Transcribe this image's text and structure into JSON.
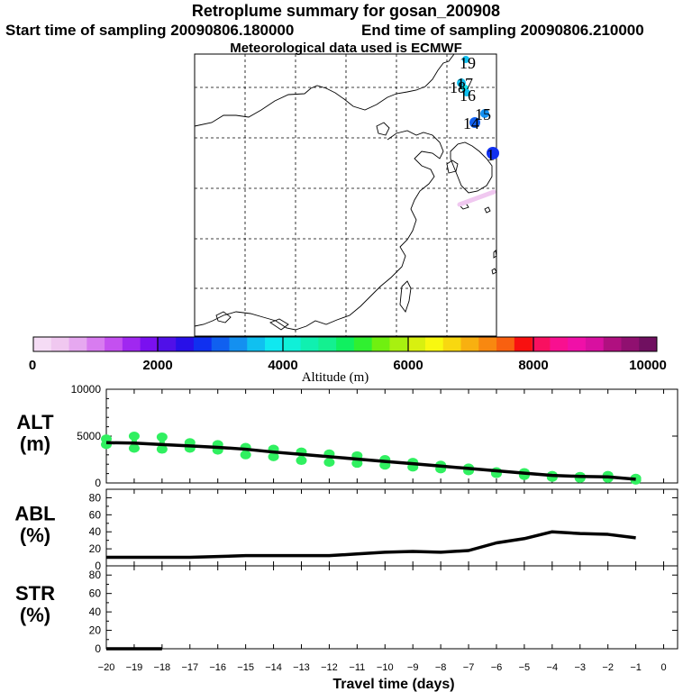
{
  "header": {
    "title": "Retroplume summary for gosan_200908",
    "start_label": "Start time of sampling 20090806.180000",
    "end_label": "End time of sampling 20090806.210000",
    "met_label": "Meteorological data used is ECMWF"
  },
  "map": {
    "labels": [
      "19",
      "18",
      "17",
      "16",
      "15",
      "14",
      "1"
    ]
  },
  "colorbar": {
    "ticks": [
      "0",
      "2000",
      "4000",
      "6000",
      "8000",
      "10000"
    ],
    "label": "Altitude (m)",
    "colors": [
      "#f5dcf5",
      "#f0c8f0",
      "#e6a8f0",
      "#d87cf0",
      "#c450f0",
      "#a028f0",
      "#7a10f0",
      "#5010e8",
      "#2810e8",
      "#1030f0",
      "#1060f0",
      "#1490f0",
      "#10c0f0",
      "#10e8f0",
      "#10f0d8",
      "#10f0b0",
      "#14f090",
      "#10f060",
      "#30f030",
      "#70f010",
      "#a8f010",
      "#d8f010",
      "#f8f810",
      "#f8d810",
      "#f8b010",
      "#f88810",
      "#f86010",
      "#f81010",
      "#f81060",
      "#f81090",
      "#f010a8",
      "#d810a0",
      "#b01080",
      "#901070",
      "#701060"
    ]
  },
  "chart_data": [
    {
      "type": "line",
      "name": "ALT",
      "ylabel": "ALT\n(m)",
      "ylabel_lines": [
        "ALT",
        "(m)"
      ],
      "ylim": [
        0,
        10000
      ],
      "yticks": [
        "0",
        "5000",
        "10000"
      ],
      "x": [
        -20,
        -19,
        -18,
        -17,
        -16,
        -15,
        -14,
        -13,
        -12,
        -11,
        -10,
        -9,
        -8,
        -7,
        -6,
        -5,
        -4,
        -3,
        -2,
        -1
      ],
      "series": [
        {
          "name": "mean altitude",
          "values": [
            4300,
            4250,
            4100,
            3950,
            3800,
            3600,
            3300,
            3050,
            2800,
            2550,
            2300,
            2050,
            1800,
            1550,
            1300,
            1050,
            800,
            700,
            650,
            400
          ]
        }
      ],
      "scatter": [
        {
          "x": -20,
          "y": [
            4700,
            4100
          ]
        },
        {
          "x": -19,
          "y": [
            5000,
            3700
          ]
        },
        {
          "x": -18,
          "y": [
            4900,
            3600
          ]
        },
        {
          "x": -17,
          "y": [
            4300,
            3700
          ]
        },
        {
          "x": -16,
          "y": [
            4100,
            3500
          ]
        },
        {
          "x": -15,
          "y": [
            3800,
            3000
          ]
        },
        {
          "x": -14,
          "y": [
            3600,
            2800
          ]
        },
        {
          "x": -13,
          "y": [
            3300,
            2400
          ]
        },
        {
          "x": -12,
          "y": [
            3100,
            2200
          ]
        },
        {
          "x": -11,
          "y": [
            2900,
            2100
          ]
        },
        {
          "x": -10,
          "y": [
            2500,
            1900
          ]
        },
        {
          "x": -9,
          "y": [
            2200,
            1700
          ]
        },
        {
          "x": -8,
          "y": [
            1900,
            1500
          ]
        },
        {
          "x": -7,
          "y": [
            1600,
            1300
          ]
        },
        {
          "x": -6,
          "y": [
            1200,
            1000
          ]
        },
        {
          "x": -5,
          "y": [
            1100,
            800
          ]
        },
        {
          "x": -4,
          "y": [
            800,
            600
          ]
        },
        {
          "x": -3,
          "y": [
            700,
            500
          ]
        },
        {
          "x": -2,
          "y": [
            800,
            500
          ]
        },
        {
          "x": -1,
          "y": [
            500,
            300
          ]
        }
      ]
    },
    {
      "type": "line",
      "name": "ABL",
      "ylabel_lines": [
        "ABL",
        "(%)"
      ],
      "ylim": [
        0,
        90
      ],
      "yticks": [
        "0",
        "20",
        "40",
        "60",
        "80"
      ],
      "x": [
        -20,
        -19,
        -18,
        -17,
        -16,
        -15,
        -14,
        -13,
        -12,
        -11,
        -10,
        -9,
        -8,
        -7,
        -6,
        -5,
        -4,
        -3,
        -2,
        -1
      ],
      "series": [
        {
          "name": "ABL",
          "values": [
            10,
            10,
            10,
            10,
            11,
            12,
            12,
            12,
            12,
            14,
            16,
            17,
            16,
            18,
            27,
            32,
            40,
            38,
            37,
            33
          ]
        }
      ]
    },
    {
      "type": "line",
      "name": "STR",
      "ylabel_lines": [
        "STR",
        "(%)"
      ],
      "ylim": [
        0,
        90
      ],
      "yticks": [
        "0",
        "20",
        "40",
        "60",
        "80"
      ],
      "x": [
        -20,
        -19,
        -18
      ],
      "series": [
        {
          "name": "STR",
          "values": [
            0,
            0,
            0
          ]
        }
      ]
    }
  ],
  "xaxis": {
    "ticks": [
      "−20",
      "−19",
      "−18",
      "−17",
      "−16",
      "−15",
      "−14",
      "−13",
      "−12",
      "−11",
      "−10",
      "−9",
      "−8",
      "−7",
      "−6",
      "−5",
      "−4",
      "−3",
      "−2",
      "−1",
      "0"
    ],
    "label": "Travel time (days)"
  }
}
